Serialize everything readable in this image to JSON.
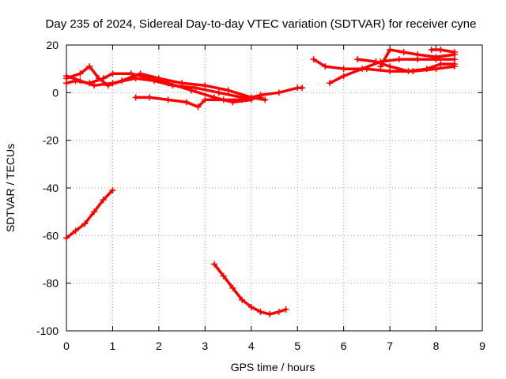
{
  "chart_data": {
    "type": "scatter",
    "title": "Day 235 of 2024, Sidereal Day-to-day VTEC variation (SDTVAR) for receiver cyne",
    "xlabel": "GPS time / hours",
    "ylabel": "SDTVAR / TECUs",
    "xlim": [
      0,
      9
    ],
    "ylim": [
      -100,
      20
    ],
    "xticks": [
      "0",
      "1",
      "2",
      "3",
      "4",
      "5",
      "6",
      "7",
      "8",
      "9"
    ],
    "yticks": [
      "20",
      "0",
      "-20",
      "-40",
      "-60",
      "-80",
      "-100"
    ],
    "grid": true,
    "color": "#ff0000",
    "series": [
      {
        "points": [
          [
            0,
            6
          ],
          [
            0.3,
            8
          ],
          [
            0.5,
            11
          ],
          [
            0.7,
            6
          ],
          [
            0.9,
            3
          ],
          [
            1.2,
            5
          ],
          [
            1.6,
            8
          ],
          [
            2.0,
            6
          ],
          [
            2.5,
            4
          ],
          [
            3.0,
            3
          ],
          [
            3.5,
            1
          ],
          [
            4.0,
            -2
          ],
          [
            4.3,
            -3
          ]
        ]
      },
      {
        "points": [
          [
            0,
            4
          ],
          [
            0.2,
            5
          ],
          [
            0.5,
            4
          ],
          [
            0.8,
            6
          ],
          [
            1.0,
            8
          ],
          [
            1.4,
            8
          ],
          [
            1.8,
            6
          ],
          [
            2.2,
            4
          ],
          [
            2.7,
            1
          ],
          [
            3.2,
            -2
          ],
          [
            3.6,
            -4
          ],
          [
            4.0,
            -3
          ]
        ]
      },
      {
        "points": [
          [
            0,
            7
          ],
          [
            0.3,
            5
          ],
          [
            0.6,
            3
          ],
          [
            1.0,
            4
          ],
          [
            1.5,
            6
          ],
          [
            1.9,
            5
          ],
          [
            2.3,
            3
          ],
          [
            2.8,
            2
          ],
          [
            3.3,
            0
          ],
          [
            3.8,
            -2
          ],
          [
            4.2,
            -2
          ]
        ]
      },
      {
        "points": [
          [
            1.5,
            -2
          ],
          [
            1.8,
            -2
          ],
          [
            2.2,
            -3
          ],
          [
            2.6,
            -4
          ],
          [
            2.85,
            -6
          ],
          [
            3.0,
            -3
          ],
          [
            3.4,
            -3
          ],
          [
            3.8,
            -3
          ],
          [
            4.2,
            -1
          ],
          [
            4.6,
            0
          ],
          [
            5.0,
            2
          ],
          [
            5.1,
            2
          ]
        ]
      },
      {
        "points": [
          [
            0,
            -61
          ],
          [
            0.2,
            -58
          ],
          [
            0.4,
            -55
          ],
          [
            0.6,
            -50
          ],
          [
            0.8,
            -45
          ],
          [
            1.0,
            -41
          ]
        ]
      },
      {
        "points": [
          [
            3.2,
            -72
          ],
          [
            3.4,
            -77
          ],
          [
            3.6,
            -82
          ],
          [
            3.8,
            -87
          ],
          [
            4.0,
            -90
          ],
          [
            4.2,
            -92
          ],
          [
            4.4,
            -93
          ],
          [
            4.6,
            -92
          ],
          [
            4.75,
            -91
          ]
        ]
      },
      {
        "points": [
          [
            5.35,
            14
          ],
          [
            5.6,
            11
          ],
          [
            6.0,
            10
          ],
          [
            6.5,
            10
          ],
          [
            7.0,
            9
          ],
          [
            7.5,
            9
          ],
          [
            8.0,
            10
          ],
          [
            8.4,
            11
          ]
        ]
      },
      {
        "points": [
          [
            5.7,
            4
          ],
          [
            6.0,
            7
          ],
          [
            6.4,
            10
          ],
          [
            6.8,
            13
          ],
          [
            7.2,
            14
          ],
          [
            7.6,
            14
          ],
          [
            8.0,
            14
          ],
          [
            8.4,
            14
          ]
        ]
      },
      {
        "points": [
          [
            6.3,
            14
          ],
          [
            6.7,
            13
          ],
          [
            7.0,
            11
          ],
          [
            7.4,
            9
          ],
          [
            7.8,
            10
          ],
          [
            8.1,
            12
          ],
          [
            8.4,
            12
          ]
        ]
      },
      {
        "points": [
          [
            6.8,
            11
          ],
          [
            7.0,
            18
          ],
          [
            7.3,
            17
          ],
          [
            7.6,
            16
          ],
          [
            8.0,
            15
          ],
          [
            8.4,
            16
          ]
        ]
      },
      {
        "points": [
          [
            7.9,
            18
          ],
          [
            8.1,
            18
          ],
          [
            8.4,
            17
          ]
        ]
      }
    ]
  }
}
